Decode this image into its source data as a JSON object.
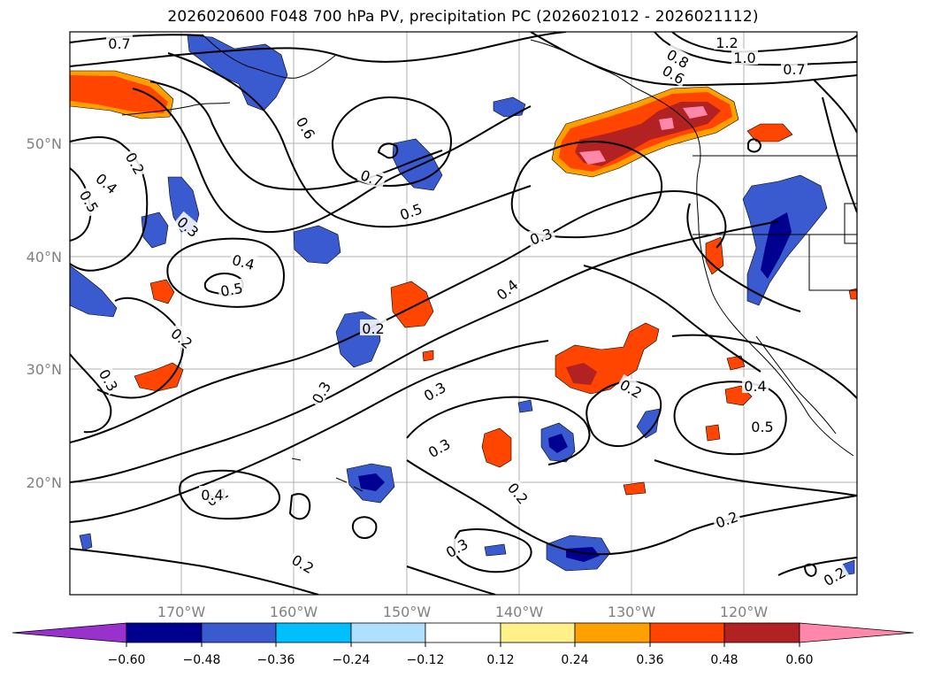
{
  "title": "2026020600 F048 700 hPa PV, precipitation PC (2026021012 - 2026021112)",
  "colors": {
    "pos": [
      "#fff08a",
      "#ffa000",
      "#ff4500",
      "#b22222",
      "#ff88aa"
    ],
    "neg": [
      "#b0e0ff",
      "#00bfff",
      "#3a5bd0",
      "#000090",
      "#9932cc"
    ],
    "contour": "#000000",
    "grid": "#b0b0b0",
    "coast": "#000000"
  },
  "lat_labels": [
    "50°N",
    "40°N",
    "30°N",
    "20°N"
  ],
  "lon_labels": [
    "170°W",
    "160°W",
    "150°W",
    "140°W",
    "130°W",
    "120°W"
  ],
  "contour_labels": [
    "0.7",
    "0.6",
    "0.4",
    "0.5",
    "0.2",
    "0.3",
    "0.4",
    "0.5",
    "0.2",
    "0.3",
    "0.7",
    "0.5",
    "0.3",
    "0.4",
    "0.2",
    "0.3",
    "0.3",
    "0.3",
    "0.2",
    "0.2",
    "0.3",
    "0.2",
    "0.2",
    "0.8",
    "0.6",
    "1.2",
    "1.0",
    "0.7",
    "0.4",
    "0.5",
    "0.2",
    "0.2",
    "0.4"
  ],
  "colorbar": {
    "tick_labels": [
      "−0.60",
      "−0.48",
      "−0.36",
      "−0.24",
      "−0.12",
      "0.12",
      "0.24",
      "0.36",
      "0.48",
      "0.60"
    ]
  }
}
